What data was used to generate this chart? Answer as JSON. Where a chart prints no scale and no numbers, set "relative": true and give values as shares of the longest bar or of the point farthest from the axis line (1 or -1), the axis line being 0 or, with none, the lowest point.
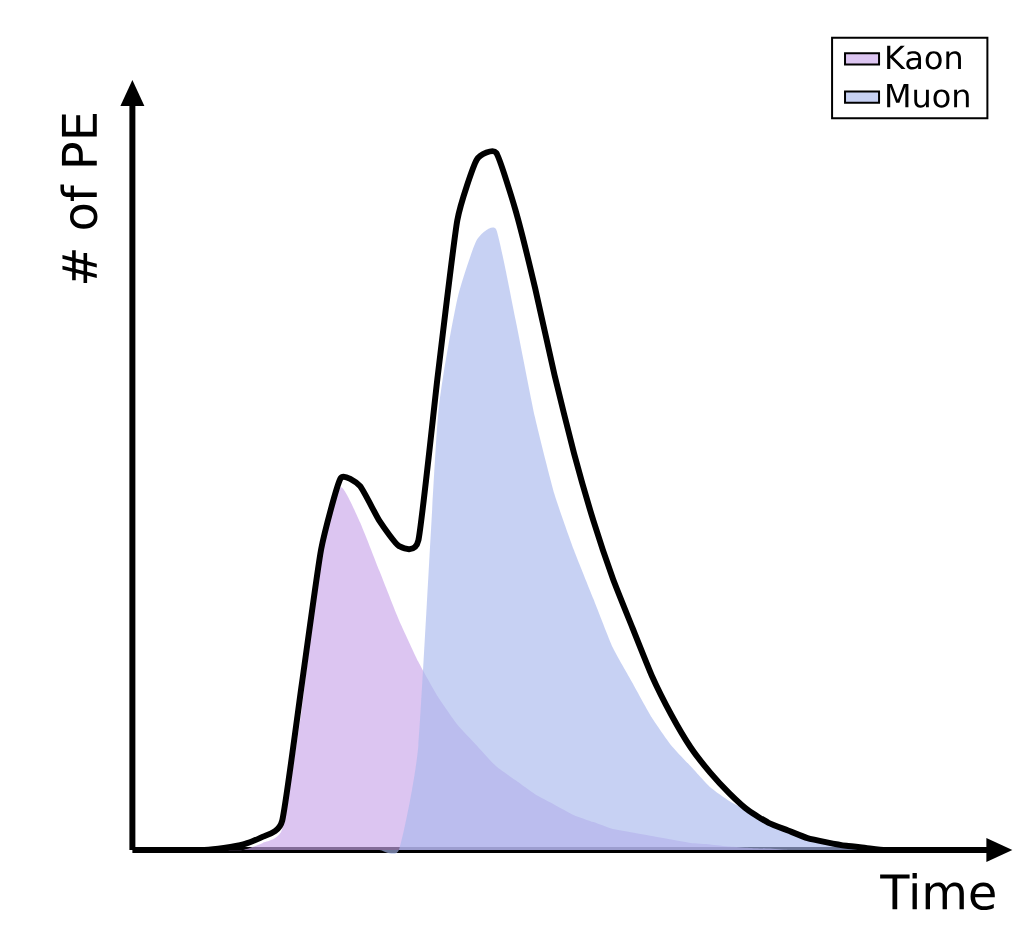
{
  "chart_data": {
    "type": "area",
    "relative": true,
    "xlabel": "Time",
    "ylabel": "# of PE",
    "legend": "top right",
    "categories": [
      null,
      null,
      null,
      null,
      null,
      null,
      null,
      null,
      null,
      null,
      null,
      null,
      null,
      null,
      null,
      null,
      null,
      null,
      null,
      null,
      null,
      null,
      null,
      null,
      null,
      null,
      null,
      null,
      null,
      null,
      null,
      null,
      null,
      null,
      null,
      null,
      null,
      null,
      null,
      null,
      null,
      null,
      null,
      null
    ],
    "series": [
      {
        "name": "Kaon",
        "color": "#c9a6ea",
        "values": [
          0,
          0,
          0,
          0,
          0,
          0,
          0.01,
          0.03,
          0.2,
          0.42,
          0.52,
          0.47,
          0.4,
          0.33,
          0.27,
          0.22,
          0.18,
          0.15,
          0.12,
          0.1,
          0.08,
          0.065,
          0.05,
          0.04,
          0.03,
          0.025,
          0.02,
          0.015,
          0.01,
          0.008,
          0.005,
          0.003,
          0.002,
          0,
          0,
          0,
          0,
          0,
          0,
          0,
          0,
          0,
          0,
          0
        ]
      },
      {
        "name": "Muon",
        "color": "#a9b8ec",
        "values": [
          0,
          0,
          0,
          0,
          0,
          0,
          0,
          0,
          0,
          0,
          0,
          0,
          0,
          0,
          0.15,
          0.62,
          0.79,
          0.875,
          0.89,
          0.76,
          0.62,
          0.51,
          0.43,
          0.36,
          0.29,
          0.24,
          0.19,
          0.15,
          0.12,
          0.09,
          0.07,
          0.055,
          0.04,
          0.03,
          0.02,
          0.012,
          0.008,
          0.004,
          0.002,
          0,
          0,
          0,
          0,
          0
        ]
      },
      {
        "type": "line",
        "color": "#000000",
        "values": [
          0,
          0,
          0,
          0,
          0.003,
          0.008,
          0.019,
          0.042,
          0.236,
          0.431,
          0.533,
          0.522,
          0.472,
          0.436,
          0.444,
          0.681,
          0.903,
          0.99,
          1.0,
          0.917,
          0.806,
          0.681,
          0.569,
          0.472,
          0.389,
          0.319,
          0.25,
          0.194,
          0.147,
          0.111,
          0.081,
          0.056,
          0.039,
          0.028,
          0.017,
          0.011,
          0.006,
          0.003,
          0,
          0,
          0,
          0,
          0,
          0
        ]
      }
    ]
  }
}
